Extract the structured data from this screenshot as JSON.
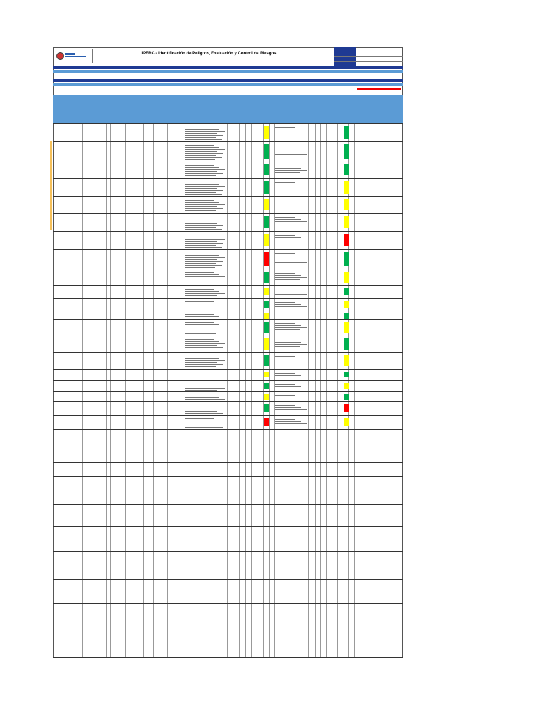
{
  "document": {
    "title": "IPERC - Identificación de Peligros, Evaluación y Control de Riesgos"
  },
  "meta_rows": [
    "",
    "",
    "",
    "",
    ""
  ],
  "sections": [
    {
      "label": ""
    },
    {
      "label": ""
    },
    {
      "label": ""
    }
  ],
  "columns": [
    "",
    "",
    "",
    "",
    "",
    "",
    "",
    "",
    "",
    "",
    "",
    "",
    "",
    ""
  ],
  "risk_cells": [
    {
      "color": "#ffff00"
    },
    {
      "color": "#00b050"
    },
    {
      "color": "#00b050"
    },
    {
      "color": "#00b050"
    },
    {
      "color": "#ffff00"
    },
    {
      "color": "#00b050"
    },
    {
      "color": "#ffff00"
    },
    {
      "color": "#ff0000"
    },
    {
      "color": "#00b050"
    },
    {
      "color": "#ffff00"
    },
    {
      "color": "#00b050"
    },
    {
      "color": "#ffff00"
    },
    {
      "color": "#00b050"
    },
    {
      "color": "#ffff00"
    },
    {
      "color": "#00b050"
    },
    {
      "color": "#ffff00"
    },
    {
      "color": "#00b050"
    },
    {
      "color": "#ffff00"
    },
    {
      "color": "#00b050"
    },
    {
      "color": "#ff0000"
    }
  ],
  "colors": {
    "header_blue": "#1f3a93",
    "light_blue": "#5b9bd5",
    "accent_orange": "#f5c05a",
    "alert_red": "#e00000"
  }
}
